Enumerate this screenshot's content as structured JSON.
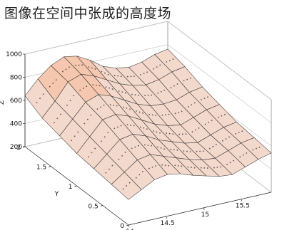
{
  "title": "图像在空间中张成的高度场",
  "chart_data": {
    "type": "surface",
    "xlabel": "",
    "ylabel": "Y",
    "zlabel": "Z",
    "x_ticks": [
      "14",
      "14.5",
      "15",
      "15.5"
    ],
    "y_ticks": [
      "0",
      "0.5",
      "1",
      "1.5",
      "2"
    ],
    "z_ticks": [
      "200",
      "400",
      "600",
      "800",
      "1000"
    ],
    "xlim": [
      14,
      15.9
    ],
    "ylim": [
      0,
      2
    ],
    "zlim": [
      200,
      1000
    ],
    "grid": true,
    "colors": {
      "surface": "#f3d8cc",
      "peak": "#f5c7ae",
      "mesh": "#222222"
    },
    "surface_rows": [
      {
        "y": 2.0,
        "z": [
          640,
          760,
          850,
          900,
          880,
          820,
          740,
          700,
          680,
          700,
          740,
          760
        ]
      },
      {
        "y": 1.67,
        "z": [
          560,
          680,
          820,
          860,
          820,
          760,
          700,
          660,
          640,
          660,
          700,
          720
        ]
      },
      {
        "y": 1.33,
        "z": [
          520,
          640,
          760,
          800,
          760,
          700,
          640,
          600,
          590,
          600,
          640,
          660
        ]
      },
      {
        "y": 1.0,
        "z": [
          480,
          600,
          720,
          740,
          700,
          640,
          580,
          540,
          520,
          560,
          600,
          620
        ]
      },
      {
        "y": 0.67,
        "z": [
          460,
          560,
          660,
          680,
          640,
          580,
          540,
          500,
          480,
          520,
          560,
          580
        ]
      },
      {
        "y": 0.33,
        "z": [
          440,
          520,
          600,
          620,
          580,
          540,
          500,
          470,
          460,
          500,
          540,
          560
        ]
      },
      {
        "y": 0.0,
        "z": [
          420,
          480,
          540,
          560,
          540,
          500,
          470,
          440,
          430,
          470,
          510,
          540
        ]
      }
    ]
  }
}
